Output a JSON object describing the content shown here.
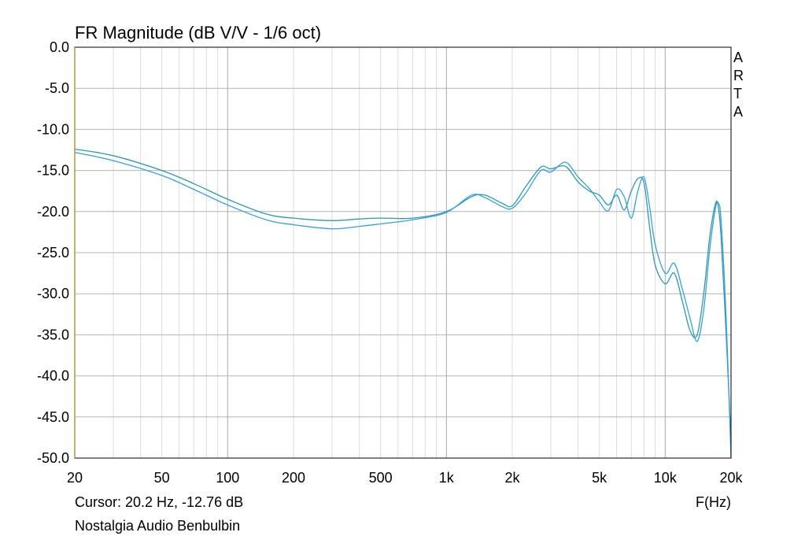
{
  "chart_data": {
    "type": "line",
    "title": "FR Magnitude (dB V/V - 1/6 oct)",
    "xlabel": "F(Hz)",
    "ylabel": "",
    "x_scale": "log",
    "xlim": [
      20,
      20000
    ],
    "ylim": [
      -50,
      0
    ],
    "grid": true,
    "y_ticks": [
      0,
      -5,
      -10,
      -15,
      -20,
      -25,
      -30,
      -35,
      -40,
      -45,
      -50
    ],
    "y_tick_labels": [
      "0.0",
      "-5.0",
      "-10.0",
      "-15.0",
      "-20.0",
      "-25.0",
      "-30.0",
      "-35.0",
      "-40.0",
      "-45.0",
      "-50.0"
    ],
    "x_ticks": [
      20,
      50,
      100,
      200,
      500,
      1000,
      2000,
      5000,
      10000,
      20000
    ],
    "x_tick_labels": [
      "20",
      "50",
      "100",
      "200",
      "500",
      "1k",
      "2k",
      "5k",
      "10k",
      "20k"
    ],
    "series": [
      {
        "color": "#2f9aa5",
        "x": [
          20,
          30,
          50,
          70,
          100,
          150,
          200,
          300,
          400,
          500,
          700,
          1000,
          1300,
          1500,
          1800,
          2000,
          2300,
          2700,
          3000,
          3500,
          4000,
          4500,
          5000,
          5500,
          6000,
          6500,
          7000,
          7500,
          8000,
          8500,
          9000,
          10000,
          11000,
          12000,
          13000,
          14000,
          15000,
          16000,
          17000,
          17500,
          18000,
          19000,
          20000
        ],
        "y": [
          -12.4,
          -13.2,
          -15.0,
          -16.6,
          -18.5,
          -20.3,
          -20.8,
          -21.1,
          -20.9,
          -20.8,
          -20.8,
          -20.0,
          -18.2,
          -18.0,
          -19.0,
          -19.3,
          -17.0,
          -14.6,
          -14.8,
          -14.5,
          -16.4,
          -17.5,
          -18.0,
          -19.2,
          -18.0,
          -19.8,
          -17.5,
          -16.0,
          -16.5,
          -22.0,
          -26.5,
          -28.8,
          -27.5,
          -31.0,
          -34.5,
          -35.0,
          -30.0,
          -23.0,
          -19.0,
          -19.5,
          -23.0,
          -35.0,
          -48.0
        ]
      },
      {
        "color": "#3a9ee0",
        "x": [
          20,
          30,
          50,
          70,
          100,
          150,
          200,
          300,
          400,
          500,
          700,
          1000,
          1300,
          1500,
          1800,
          2000,
          2300,
          2700,
          3000,
          3500,
          4000,
          4500,
          5000,
          5500,
          6000,
          6500,
          7000,
          7500,
          8000,
          8500,
          9000,
          10000,
          11000,
          12000,
          13000,
          14000,
          15000,
          16000,
          17000,
          17500,
          18000,
          19000,
          20000
        ],
        "y": [
          -12.8,
          -13.8,
          -15.6,
          -17.3,
          -19.2,
          -21.0,
          -21.6,
          -22.1,
          -21.8,
          -21.5,
          -21.0,
          -20.1,
          -18.0,
          -18.3,
          -19.4,
          -19.6,
          -17.8,
          -15.0,
          -15.2,
          -14.0,
          -15.8,
          -17.2,
          -18.8,
          -19.9,
          -17.3,
          -18.2,
          -20.8,
          -17.5,
          -15.8,
          -19.5,
          -24.0,
          -27.5,
          -26.3,
          -29.5,
          -33.0,
          -35.8,
          -32.0,
          -24.5,
          -19.5,
          -19.0,
          -21.0,
          -33.0,
          -50.0
        ]
      }
    ]
  },
  "side_label": "ARTA",
  "footer": {
    "cursor": "Cursor: 20.2 Hz, -12.76 dB",
    "product": "Nostalgia Audio Benbulbin"
  }
}
